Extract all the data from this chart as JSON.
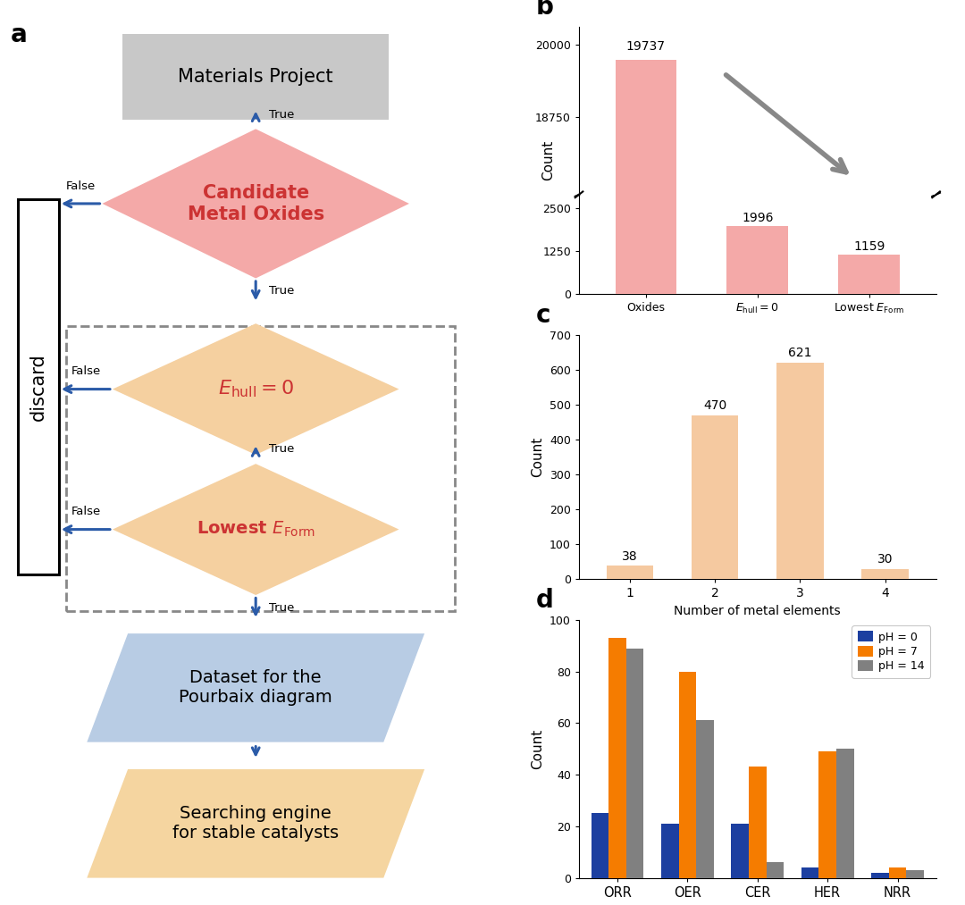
{
  "panel_b": {
    "categories": [
      "Oxides",
      "$E_{hull}=0$",
      "Lowest $E_{Form}$"
    ],
    "values": [
      19737,
      1996,
      1159
    ],
    "bar_color": "#F4A9A8",
    "ylabel": "Count",
    "yticks_upper": [
      18750,
      20000
    ],
    "yticks_lower": [
      0,
      1250,
      2500
    ],
    "annotations": [
      "19737",
      "1996",
      "1159"
    ]
  },
  "panel_c": {
    "categories": [
      "1",
      "2",
      "3",
      "4"
    ],
    "values": [
      38,
      470,
      621,
      30
    ],
    "bar_color": "#F5C9A0",
    "ylabel": "Count",
    "xlabel": "Number of metal elements",
    "ylim": [
      0,
      700
    ],
    "yticks": [
      0,
      100,
      200,
      300,
      400,
      500,
      600,
      700
    ],
    "annotations": [
      "38",
      "470",
      "621",
      "30"
    ]
  },
  "panel_d": {
    "categories": [
      "ORR",
      "OER",
      "CER",
      "HER",
      "NRR"
    ],
    "ph0": [
      25,
      21,
      21,
      4,
      2
    ],
    "ph7": [
      93,
      80,
      43,
      49,
      4
    ],
    "ph14": [
      89,
      61,
      6,
      50,
      3
    ],
    "colors": {
      "ph0": "#1C3FA0",
      "ph7": "#F57C00",
      "ph14": "#808080"
    },
    "ylabel": "Count",
    "ylim": [
      0,
      100
    ],
    "yticks": [
      0,
      20,
      40,
      60,
      80,
      100
    ],
    "legend_labels": [
      "pH = 0",
      "pH = 7",
      "pH = 14"
    ]
  },
  "flowchart": {
    "materials_project_color": "#C8C8C8",
    "candidate_color": "#F4A9A8",
    "ehull_color": "#F5D0A0",
    "eform_color": "#F5D0A0",
    "dataset_color": "#B8CCE4",
    "searching_color": "#F5D5A0",
    "arrow_color": "#2B5BA8",
    "diamond_text_color": "#CC3333",
    "rect_text_color": "#000000"
  }
}
